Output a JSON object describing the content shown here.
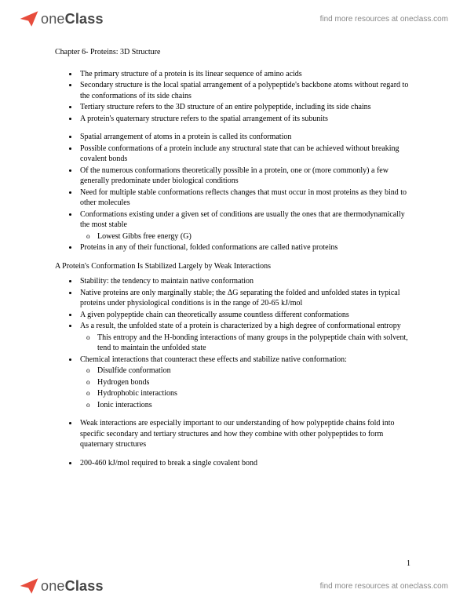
{
  "brand": {
    "prefix": "one",
    "suffix": "Class"
  },
  "header_link": "find more resources at oneclass.com",
  "footer_link": "find more resources at oneclass.com",
  "logo_color": "#e74c3c",
  "chapter_title": "Chapter 6- Proteins: 3D Structure",
  "block1": [
    "The primary structure of a protein is its linear sequence of amino acids",
    "Secondary structure is the local spatial arrangement of a polypeptide's backbone atoms without regard to the conformations of its side chains",
    "Tertiary structure refers to the 3D structure of an entire polypeptide, including its side chains",
    "A protein's quaternary structure refers to the spatial arrangement of its subunits"
  ],
  "block2": {
    "items": [
      {
        "text": "Spatial arrangement of atoms in a protein is called its conformation"
      },
      {
        "text": "Possible conformations of a protein include any structural state that can be achieved without breaking covalent bonds"
      },
      {
        "text": "Of the numerous conformations theoretically possible in a protein, one or (more commonly) a few generally predominate under biological conditions"
      },
      {
        "text": "Need for multiple stable conformations reflects changes that must occur in most proteins as they bind to other molecules"
      },
      {
        "text": "Conformations existing under a given set of conditions are usually the ones that are thermodynamically the most stable",
        "sub": [
          "Lowest Gibbs free energy (G)"
        ]
      },
      {
        "text": "Proteins in any of their functional, folded conformations are called native proteins"
      }
    ]
  },
  "section_heading": "A Protein's Conformation Is Stabilized Largely by Weak Interactions",
  "block3": {
    "items": [
      {
        "text": "Stability: the tendency to maintain native conformation"
      },
      {
        "text": "Native proteins are only marginally stable; the ΔG separating the folded and unfolded states in typical proteins under physiological conditions is in the range of 20-65 kJ/mol"
      },
      {
        "text": "A given polypeptide chain can theoretically assume countless different conformations"
      },
      {
        "text": "As a result, the unfolded state of a protein is characterized by a high degree of conformational entropy",
        "sub": [
          "This entropy and the H-bonding interactions of many groups in the polypeptide chain with solvent, tend to maintain the unfolded state"
        ]
      },
      {
        "text": "Chemical interactions that counteract these effects and stabilize native conformation:",
        "sub": [
          "Disulfide conformation",
          "Hydrogen bonds",
          "Hydrophobic interactions",
          "Ionic interactions"
        ]
      }
    ]
  },
  "block4": [
    "Weak interactions are especially important to our understanding of how polypeptide chains fold into specific secondary and tertiary structures and how they combine with other polypeptides to form quaternary structures"
  ],
  "block5": [
    "200-460 kJ/mol required to break a single covalent bond"
  ],
  "page_number": "1"
}
